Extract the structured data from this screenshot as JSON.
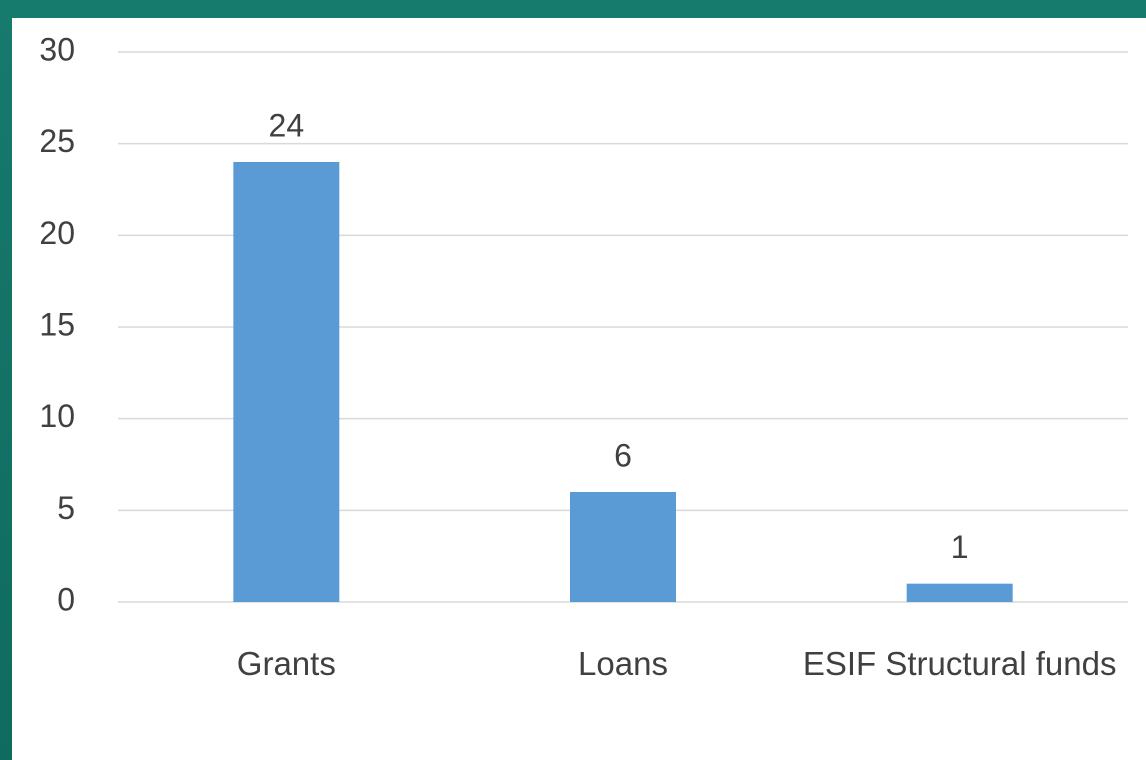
{
  "chart_data": {
    "type": "bar",
    "categories": [
      "Grants",
      "Loans",
      "ESIF Structural funds"
    ],
    "values": [
      24,
      6,
      1
    ],
    "color": "#5b9bd5",
    "ylim": [
      0,
      30
    ],
    "yticks": [
      0,
      5,
      10,
      15,
      20,
      25,
      30
    ],
    "grid": true
  }
}
